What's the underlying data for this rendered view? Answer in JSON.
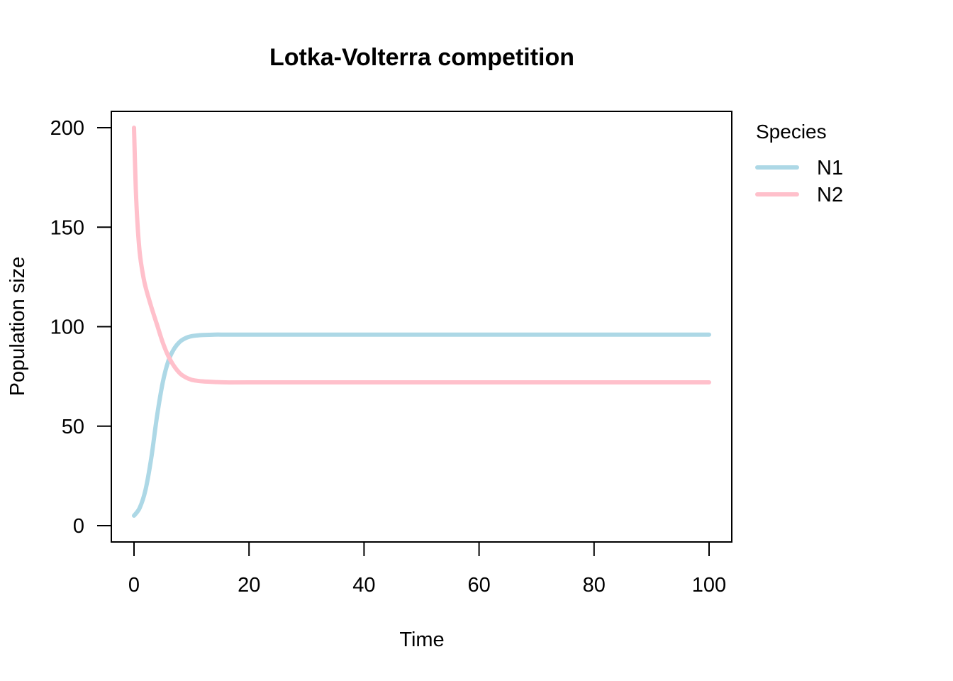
{
  "chart_data": {
    "type": "line",
    "title": "Lotka-Volterra competition",
    "xlabel": "Time",
    "ylabel": "Population size",
    "xlim": [
      0,
      100
    ],
    "ylim": [
      0,
      200
    ],
    "x_ticks": [
      0,
      20,
      40,
      60,
      80,
      100
    ],
    "y_ticks": [
      0,
      50,
      100,
      150,
      200
    ],
    "grid": false,
    "legend": {
      "title": "Species",
      "placement": "right"
    },
    "series": [
      {
        "name": "N1",
        "color": "#ADD8E6",
        "x": [
          0,
          1,
          2,
          3,
          4,
          5,
          6,
          7,
          8,
          9,
          10,
          11,
          12,
          14,
          16,
          20,
          30,
          40,
          60,
          80,
          100
        ],
        "y": [
          5,
          9,
          18,
          34,
          55,
          72,
          83,
          89,
          92.5,
          94.3,
          95.2,
          95.6,
          95.8,
          96,
          96,
          96,
          96,
          96,
          96,
          96,
          96
        ]
      },
      {
        "name": "N2",
        "color": "#FFC0CB",
        "x": [
          0,
          0.3,
          0.6,
          1,
          1.5,
          2,
          3,
          4,
          5,
          6,
          7,
          8,
          9,
          10,
          11,
          12,
          14,
          16,
          20,
          30,
          40,
          60,
          80,
          100
        ],
        "y": [
          200,
          170,
          152,
          137,
          127,
          120,
          110,
          101,
          92,
          85,
          80,
          76.5,
          74.5,
          73.3,
          72.8,
          72.5,
          72.2,
          72,
          72,
          72,
          72,
          72,
          72,
          72
        ]
      }
    ]
  }
}
